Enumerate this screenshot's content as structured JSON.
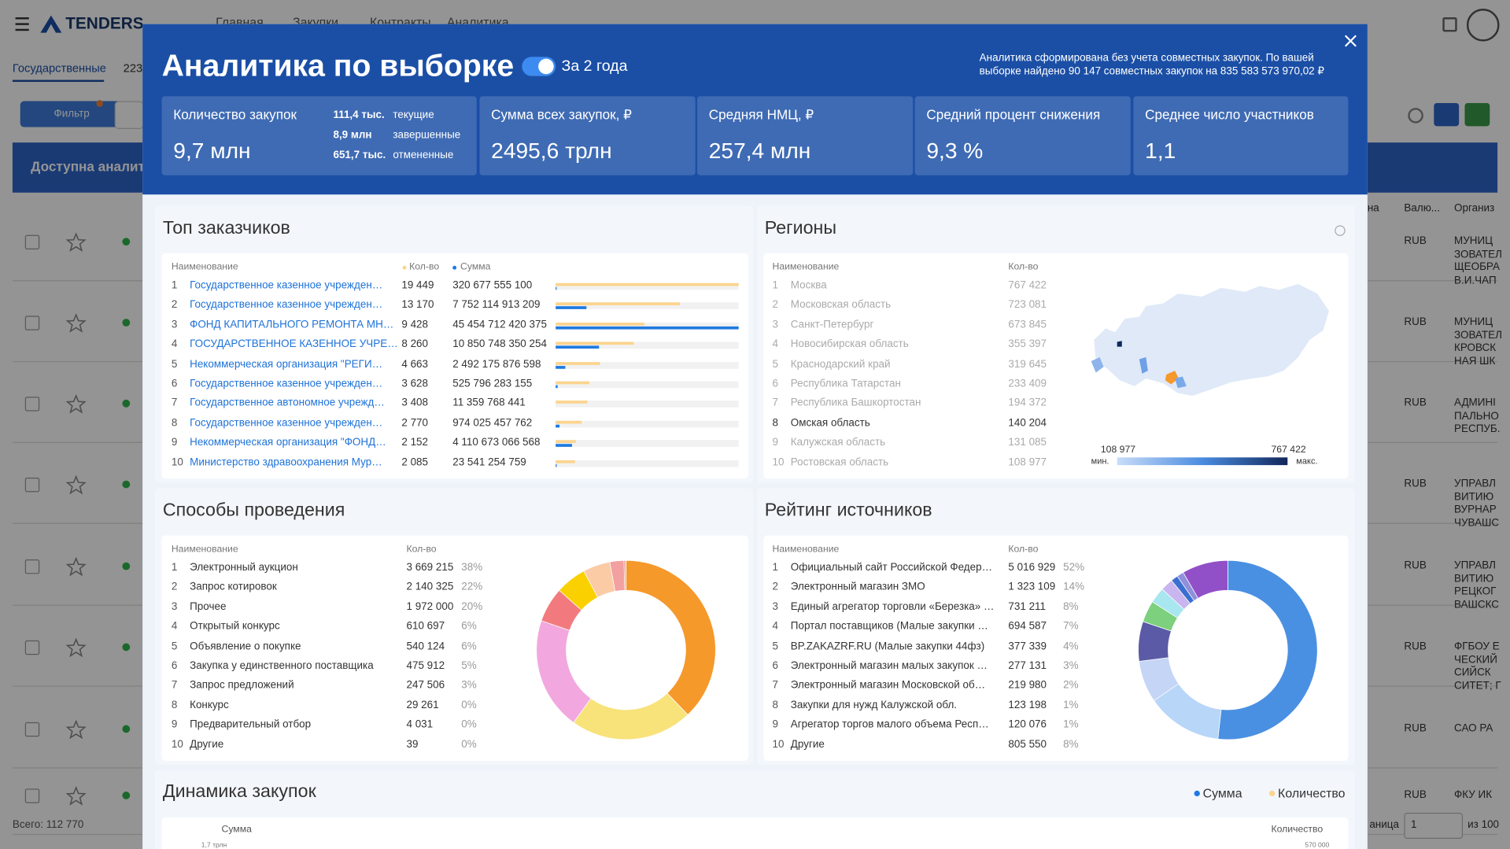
{
  "background": {
    "logo": "TENDERS",
    "nav": [
      "Главная",
      "Закупки",
      "Контракты",
      "Аналитика"
    ],
    "tabs": [
      "Государственные",
      "223"
    ],
    "filter": "Фильтр",
    "banner": "Доступна аналити",
    "columns": [
      "на",
      "Валю...",
      "Организ"
    ],
    "rows": [
      {
        "currency": "RUB",
        "org": [
          "МУНИЦ",
          "ЗОВАТЕЛ",
          "ЩЕОБРА",
          "В.И.ЧАП"
        ]
      },
      {
        "currency": "RUB",
        "org": [
          "МУНИЦ",
          "ЗОВАТЕЛ",
          "КРОВСК",
          "НАЯ ШК"
        ]
      },
      {
        "currency": "RUB",
        "org": [
          "АДМИНІ",
          "ПАЛЬНО",
          "РЕСПУБ."
        ]
      },
      {
        "currency": "RUB",
        "org": [
          "УПРАВЛ",
          "ВИТИЮ",
          "ВУРНАР",
          "ЧУВАШС"
        ]
      },
      {
        "currency": "RUB",
        "org": [
          "УПРАВЛ",
          "ВИТИЮ",
          "РЕЦКОГ",
          "ВАШСКС"
        ]
      },
      {
        "currency": "RUB",
        "org": [
          "ФГБОУ Е",
          "ЧЕСКИЙ",
          "СИЙСК",
          "СИТЕТ; Г"
        ]
      },
      {
        "currency": "RUB",
        "org": [
          "САО РА"
        ]
      },
      {
        "currency": "RUB",
        "org": [
          "ФКУ ИК"
        ]
      }
    ],
    "total": "Всего: 112 770",
    "page_label": "аница",
    "page": "1",
    "pages": "из 100"
  },
  "modal": {
    "title": "Аналитика по выборке",
    "toggle": "За 2 года",
    "note": [
      "Аналитика сформирована без учета совместных закупок. По вашей",
      "выборке найдено 90 147 совместных закупок на 835 583 573 970,02 ₽"
    ],
    "kpis": [
      {
        "label": "Количество закупок",
        "value": "9,7 млн",
        "breakdown": [
          [
            "111,4 тыс.",
            "текущие"
          ],
          [
            "8,9 млн",
            "завершенные"
          ],
          [
            "651,7 тыс.",
            "отмененные"
          ]
        ]
      },
      {
        "label": "Сумма всех закупок, ₽",
        "value": "2495,6 трлн"
      },
      {
        "label": "Средняя НМЦ, ₽",
        "value": "257,4 млн"
      },
      {
        "label": "Средний процент снижения",
        "value": "9,3 %"
      },
      {
        "label": "Среднее число участников",
        "value": "1,1"
      }
    ]
  },
  "top_customers": {
    "title": "Топ заказчиков",
    "headers": [
      "Наименование",
      "Кол-во",
      "Сумма"
    ],
    "rows": [
      [
        "1",
        "Государственное казенное учрежден…",
        "19 449",
        "320 677 555 100"
      ],
      [
        "2",
        "Государственное казенное учрежден…",
        "13 170",
        "7 752 114 913 209"
      ],
      [
        "3",
        "ФОНД КАПИТАЛЬНОГО РЕМОНТА МН…",
        "9 428",
        "45 454 712 420 375"
      ],
      [
        "4",
        "ГОСУДАРСТВЕННОЕ КАЗЕННОЕ УЧРЕ…",
        "8 260",
        "10 850 748 350 254"
      ],
      [
        "5",
        "Некоммерческая организация \"РЕГИ…",
        "4 663",
        "2 492 175 876 598"
      ],
      [
        "6",
        "Государственное казенное учрежден…",
        "3 628",
        "525 796 283 155"
      ],
      [
        "7",
        "Государственное автономное учрежд…",
        "3 408",
        "11 359 768 441"
      ],
      [
        "8",
        "Государственное казенное учрежден…",
        "2 770",
        "974 025 457 762"
      ],
      [
        "9",
        "Некоммерческая организация \"ФОНД…",
        "2 152",
        "4 110 673 066 568"
      ],
      [
        "10",
        "Министерство здравоохранения Мур…",
        "2 085",
        "23 541 254 759"
      ]
    ]
  },
  "regions": {
    "title": "Регионы",
    "headers": [
      "Наименование",
      "Кол-во"
    ],
    "rows": [
      [
        "1",
        "Москва",
        "767 422"
      ],
      [
        "2",
        "Московская область",
        "723 081"
      ],
      [
        "3",
        "Санкт-Петербург",
        "673 845"
      ],
      [
        "4",
        "Новосибирская область",
        "355 397"
      ],
      [
        "5",
        "Краснодарский край",
        "319 645"
      ],
      [
        "6",
        "Республика Татарстан",
        "233 409"
      ],
      [
        "7",
        "Республика Башкортостан",
        "194 372"
      ],
      [
        "8",
        "Омская область",
        "140 204"
      ],
      [
        "9",
        "Калужская область",
        "131 085"
      ],
      [
        "10",
        "Ростовская область",
        "108 977"
      ]
    ],
    "legend": {
      "min_value": "108 977",
      "max_value": "767 422",
      "min": "мин.",
      "max": "макс."
    }
  },
  "methods": {
    "title": "Способы проведения",
    "headers": [
      "Наименование",
      "Кол-во"
    ],
    "rows": [
      [
        "1",
        "Электронный аукцион",
        "3 669 215",
        "38%"
      ],
      [
        "2",
        "Запрос котировок",
        "2 140 325",
        "22%"
      ],
      [
        "3",
        "Прочее",
        "1 972 000",
        "20%"
      ],
      [
        "4",
        "Открытый конкурс",
        "610 697",
        "6%"
      ],
      [
        "5",
        "Объявление о покупке",
        "540 124",
        "6%"
      ],
      [
        "6",
        "Закупка у единственного поставщика",
        "475 912",
        "5%"
      ],
      [
        "7",
        "Запрос предложений",
        "247 506",
        "3%"
      ],
      [
        "8",
        "Конкурс",
        "29 261",
        "0%"
      ],
      [
        "9",
        "Предварительный отбор",
        "4 031",
        "0%"
      ],
      [
        "10",
        "Другие",
        "39",
        "0%"
      ]
    ],
    "colors": [
      "#f5992b",
      "#f8e27a",
      "#f2a8de",
      "#f27a7e",
      "#fbd000",
      "#fbcba6",
      "#f3a0a0",
      "#e08080",
      "#d07070",
      "#c06060"
    ]
  },
  "sources": {
    "title": "Рейтинг источников",
    "headers": [
      "Наименование",
      "Кол-во"
    ],
    "rows": [
      [
        "1",
        "Официальный сайт Российской Федер…",
        "5 016 929",
        "52%"
      ],
      [
        "2",
        "Электронный магазин ЗМО",
        "1 323 109",
        "14%"
      ],
      [
        "3",
        "Единый агрегатор торговли «Березка» …",
        "731 211",
        "8%"
      ],
      [
        "4",
        "Портал поставщиков (Малые закупки …",
        "694 587",
        "7%"
      ],
      [
        "5",
        "BP.ZAKAZRF.RU (Малые закупки 44фз)",
        "377 339",
        "4%"
      ],
      [
        "6",
        "Электронный магазин малых закупок …",
        "277 131",
        "3%"
      ],
      [
        "7",
        "Электронный магазин Московской об…",
        "219 980",
        "2%"
      ],
      [
        "8",
        "Закупки для нужд Калужской обл.",
        "123 198",
        "1%"
      ],
      [
        "9",
        "Агрегатор торгов малого объема Респ…",
        "120 076",
        "1%"
      ],
      [
        "10",
        "Другие",
        "805 550",
        "8%"
      ]
    ],
    "colors": [
      "#4a90e2",
      "#b7d6f8",
      "#c5d5f6",
      "#5a5aa6",
      "#7dd07d",
      "#a8e6f0",
      "#c9b6ee",
      "#3a6fd0",
      "#8f8fdc",
      "#9150c8"
    ]
  },
  "dynamics": {
    "title": "Динамика закупок",
    "legend": [
      "Сумма",
      "Количество"
    ],
    "left_axis": "Сумма",
    "right_axis": "Количество",
    "left_tick": "1,7 трлн",
    "right_tick": "570 000"
  }
}
